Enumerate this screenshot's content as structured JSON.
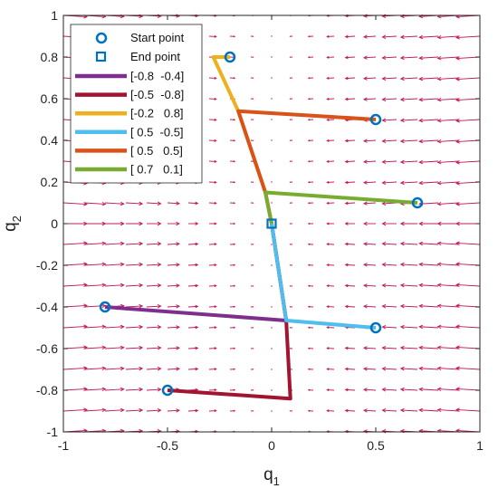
{
  "chart_data": {
    "type": "line",
    "title": "",
    "xlabel": "q",
    "xlabel_sub": "1",
    "ylabel": "q",
    "ylabel_sub": "2",
    "xlim": [
      -1,
      1
    ],
    "ylim": [
      -1,
      1
    ],
    "x_ticks": [
      -1,
      -0.5,
      0,
      0.5,
      1
    ],
    "x_tick_labels": [
      "-1",
      "-0.5",
      "0",
      "0.5",
      "1"
    ],
    "y_ticks": [
      -1,
      -0.8,
      -0.6,
      -0.4,
      -0.2,
      0,
      0.2,
      0.4,
      0.6,
      0.8,
      1
    ],
    "y_tick_labels": [
      "-1",
      "-0.8",
      "-0.6",
      "-0.4",
      "-0.2",
      "0",
      "0.2",
      "0.4",
      "0.6",
      "0.8",
      "1"
    ],
    "grid": false,
    "legend_position": "top-left",
    "marker_legend": [
      {
        "name": "Start point",
        "marker": "circle"
      },
      {
        "name": "End point",
        "marker": "square"
      }
    ],
    "series": [
      {
        "name": "[-0.8  -0.4]",
        "color": "#7E2F8E",
        "start": [
          -0.8,
          -0.4
        ],
        "x": [
          -0.8,
          0.07,
          0.0
        ],
        "y": [
          -0.4,
          -0.465,
          0.0
        ]
      },
      {
        "name": "[-0.5  -0.8]",
        "color": "#A2142F",
        "start": [
          -0.5,
          -0.8
        ],
        "x": [
          -0.5,
          0.09,
          0.07,
          0.0
        ],
        "y": [
          -0.8,
          -0.84,
          -0.465,
          0.0
        ]
      },
      {
        "name": "[-0.2   0.8]",
        "color": "#EDB120",
        "start": [
          -0.2,
          0.8
        ],
        "x": [
          -0.2,
          -0.28,
          -0.16,
          -0.03,
          0.0
        ],
        "y": [
          0.8,
          0.8,
          0.54,
          0.15,
          0.0
        ]
      },
      {
        "name": "[ 0.5  -0.5]",
        "color": "#4DBEEE",
        "start": [
          0.5,
          -0.5
        ],
        "x": [
          0.5,
          0.07,
          0.0
        ],
        "y": [
          -0.5,
          -0.465,
          0.0
        ]
      },
      {
        "name": "[ 0.5   0.5]",
        "color": "#D95319",
        "start": [
          0.5,
          0.5
        ],
        "x": [
          0.5,
          -0.16,
          -0.03,
          0.0
        ],
        "y": [
          0.5,
          0.54,
          0.15,
          0.0
        ]
      },
      {
        "name": "[ 0.7   0.1]",
        "color": "#77AC30",
        "start": [
          0.7,
          0.1
        ],
        "x": [
          0.7,
          -0.03,
          0.0
        ],
        "y": [
          0.1,
          0.15,
          0.0
        ]
      }
    ],
    "end_point": [
      0.0,
      0.0
    ],
    "marker_color": "#0072BD",
    "quiver_color": "#C2185B"
  }
}
